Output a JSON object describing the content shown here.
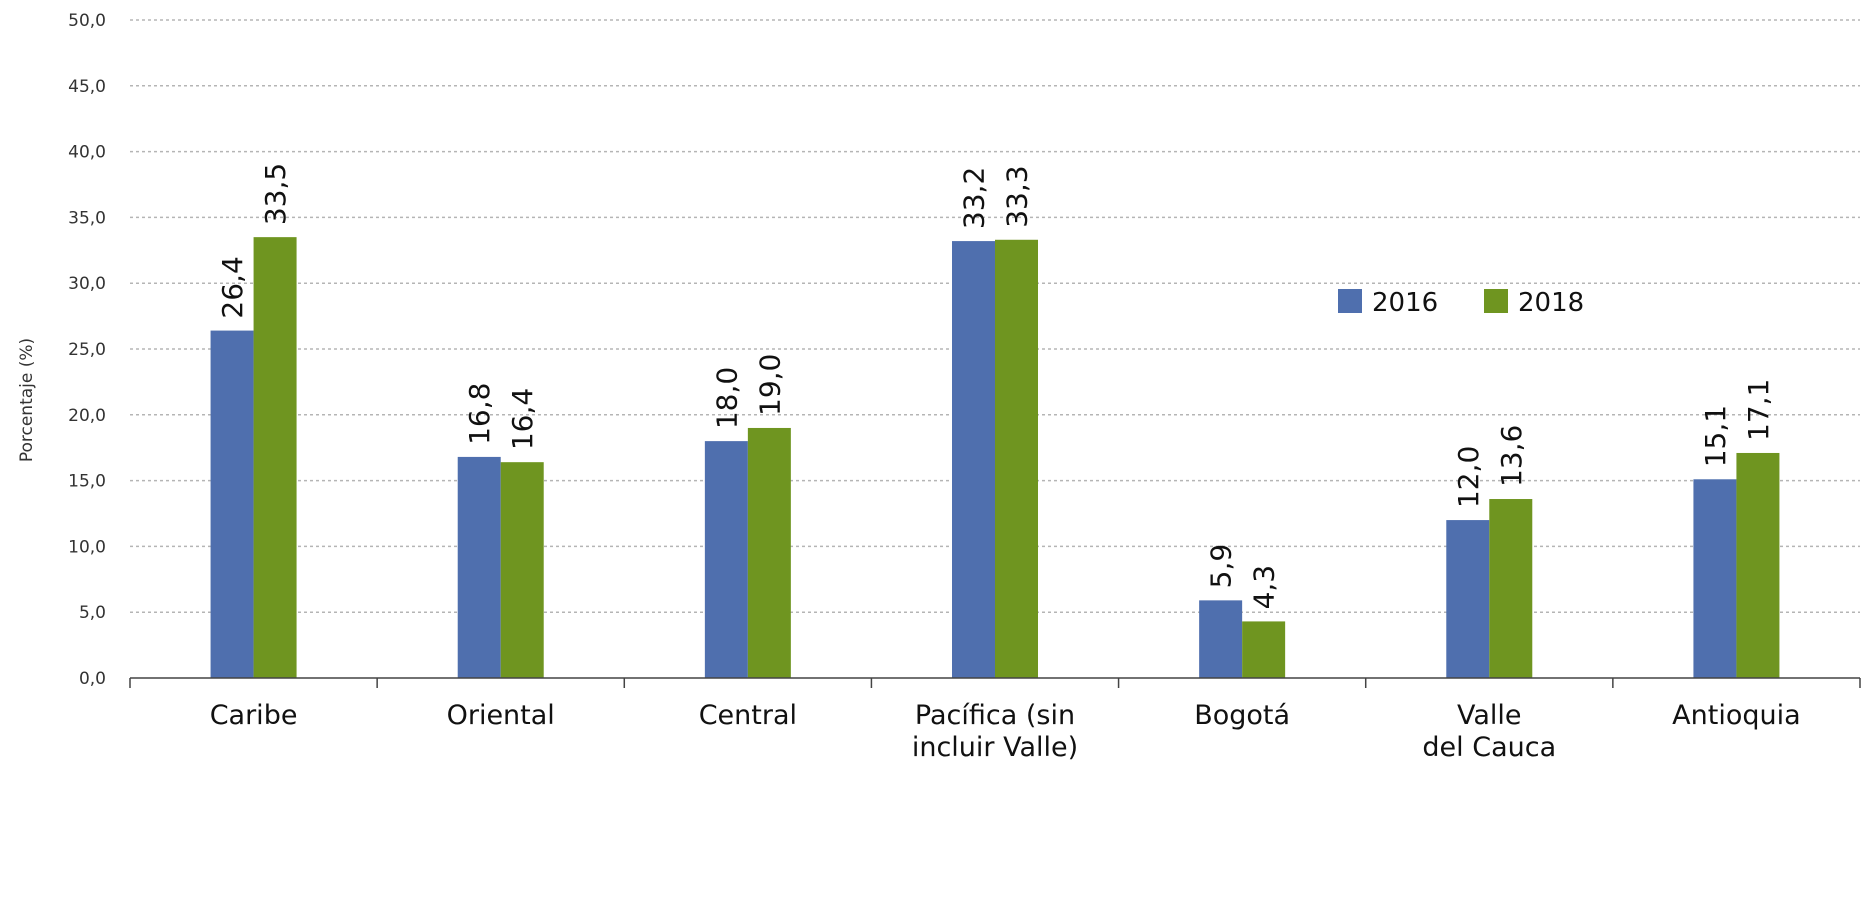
{
  "chart_data": {
    "type": "bar",
    "title": "",
    "xlabel": "",
    "ylabel": "Porcentaje (%)",
    "ylim": [
      0,
      50
    ],
    "ytick_labels": [
      "0,0",
      "5,0",
      "10,0",
      "15,0",
      "20,0",
      "25,0",
      "30,0",
      "35,0",
      "40,0",
      "45,0",
      "50,0"
    ],
    "grid": true,
    "legend_position": "top-right",
    "categories": [
      [
        "Caribe"
      ],
      [
        "Oriental"
      ],
      [
        "Central"
      ],
      [
        "Pacífica (sin",
        "incluir Valle)"
      ],
      [
        "Bogotá"
      ],
      [
        "Valle",
        "del Cauca"
      ],
      [
        "Antioquia"
      ]
    ],
    "series": [
      {
        "name": "2016",
        "color": "#4f6fae",
        "values": [
          26.4,
          16.8,
          18.0,
          33.2,
          5.9,
          12.0,
          15.1
        ],
        "value_labels": [
          "26,4",
          "16,8",
          "18,0",
          "33,2",
          "5,9",
          "12,0",
          "15,1"
        ]
      },
      {
        "name": "2018",
        "color": "#6f9520",
        "values": [
          33.5,
          16.4,
          19.0,
          33.3,
          4.3,
          13.6,
          17.1
        ],
        "value_labels": [
          "33,5",
          "16,4",
          "19,0",
          "33,3",
          "4,3",
          "13,6",
          "17,1"
        ]
      }
    ]
  }
}
